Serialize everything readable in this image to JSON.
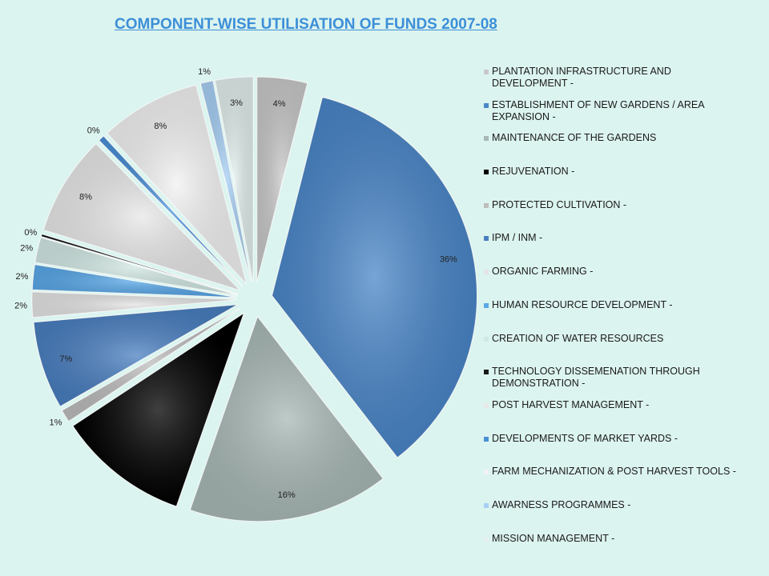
{
  "title": "COMPONENT-WISE UTILISATION OF  FUNDS 2007-08",
  "chart_data": {
    "type": "pie",
    "title": "COMPONENT-WISE UTILISATION OF  FUNDS 2007-08",
    "legend_position": "right",
    "slices": [
      {
        "label": "PLANTATION INFRASTRUCTURE AND DEVELOPMENT -",
        "value": 4,
        "pct_label": "4%",
        "color": "#c9c9c9"
      },
      {
        "label": "ESTABLISHMENT OF NEW GARDENS / AREA EXPANSION -",
        "value": 36,
        "pct_label": "36%",
        "color": "#4a86c8"
      },
      {
        "label": "MAINTENANCE OF THE GARDENS",
        "value": 16,
        "pct_label": "16%",
        "color": "#a9b9b6"
      },
      {
        "label": "REJUVENATION -",
        "value": 10.5,
        "pct_label": "",
        "color": "#000000"
      },
      {
        "label": "PROTECTED CULTIVATION -",
        "value": 1,
        "pct_label": "1%",
        "color": "#bdbdbd"
      },
      {
        "label": "IPM / INM -",
        "value": 7,
        "pct_label": "7%",
        "color": "#4a7fc0"
      },
      {
        "label": "ORGANIC FARMING -",
        "value": 2,
        "pct_label": "2%",
        "color": "#e4e4e4"
      },
      {
        "label": "HUMAN RESOURCE DEVELOPMENT -",
        "value": 2,
        "pct_label": "2%",
        "color": "#5aa8e8"
      },
      {
        "label": "CREATION OF WATER RESOURCES",
        "value": 2,
        "pct_label": "2%",
        "color": "#d2e8e4"
      },
      {
        "label": "TECHNOLOGY DISSEMENATION THROUGH DEMONSTRATION -",
        "value": 0.2,
        "pct_label": "0%",
        "color": "#1a1a1a"
      },
      {
        "label": "POST HARVEST MANAGEMENT -",
        "value": 8,
        "pct_label": "8%",
        "color": "#e8e8e8"
      },
      {
        "label": "DEVELOPMENTS OF MARKET YARDS -",
        "value": 0.5,
        "pct_label": "0%",
        "color": "#4a90d8"
      },
      {
        "label": "FARM MECHANIZATION & POST HARVEST TOOLS -",
        "value": 8,
        "pct_label": "8%",
        "color": "#f2f2f2"
      },
      {
        "label": "AWARNESS PROGRAMMES -",
        "value": 1,
        "pct_label": "1%",
        "color": "#a8d0f5"
      },
      {
        "label": "MISSION MANAGEMENT -",
        "value": 3,
        "pct_label": "3%",
        "color": "#e2efed"
      }
    ]
  }
}
